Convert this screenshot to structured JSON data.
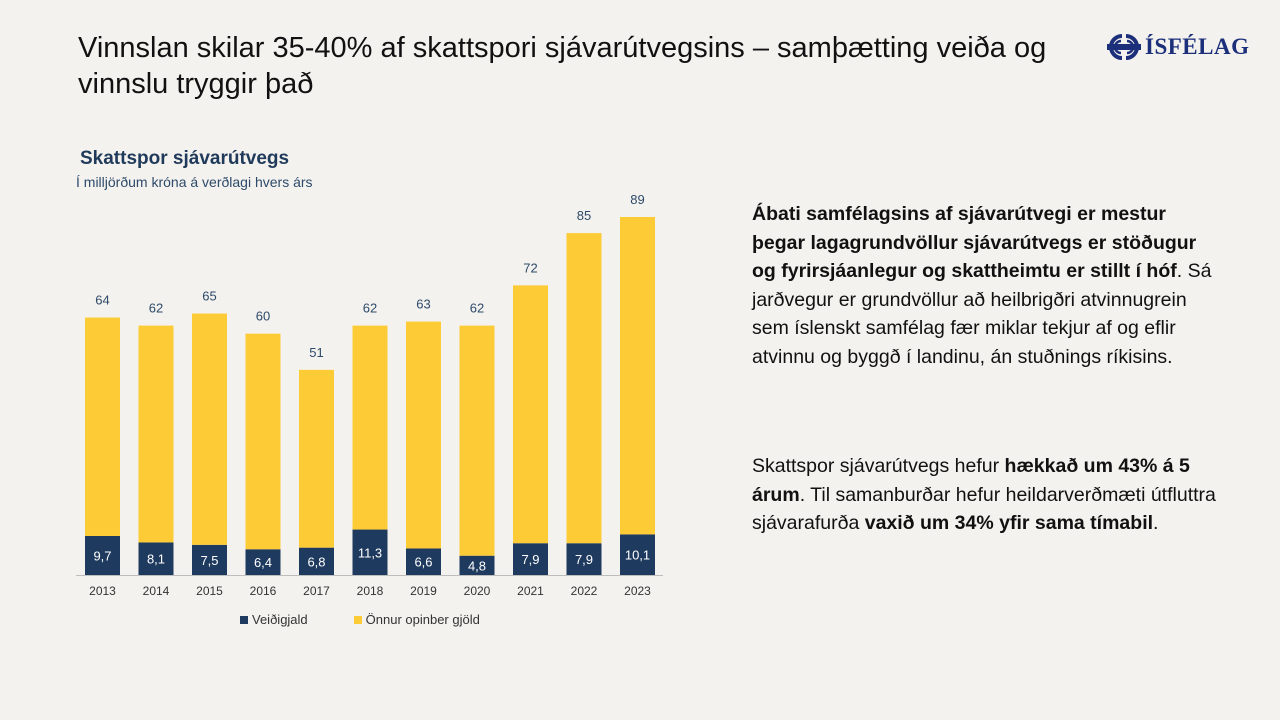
{
  "slide": {
    "title": "Vinnslan skilar 35-40% af skattspori sjávarútvegsins – samþætting veiða og vinnslu tryggir það",
    "logo_text": "ÍSFÉLAG",
    "logo_color": "#1b2f7a"
  },
  "chart_data": {
    "type": "bar",
    "stacked": true,
    "title": "Skattspor sjávarútvegs",
    "subtitle": "Í milljörðum króna á verðlagi hvers árs",
    "categories": [
      "2013",
      "2014",
      "2015",
      "2016",
      "2017",
      "2018",
      "2019",
      "2020",
      "2021",
      "2022",
      "2023"
    ],
    "series": [
      {
        "name": "Veiðigjald",
        "color": "#1f3a5f",
        "values": [
          9.7,
          8.1,
          7.5,
          6.4,
          6.8,
          11.3,
          6.6,
          4.8,
          7.9,
          7.9,
          10.1
        ],
        "labels": [
          "9,7",
          "8,1",
          "7,5",
          "6,4",
          "6,8",
          "11,3",
          "6,6",
          "4,8",
          "7,9",
          "7,9",
          "10,1"
        ]
      },
      {
        "name": "Önnur opinber gjöld",
        "color": "#fdcb35",
        "values": [
          54.3,
          53.9,
          57.5,
          53.6,
          44.2,
          50.7,
          56.4,
          57.2,
          64.1,
          77.1,
          78.9
        ]
      }
    ],
    "totals": [
      64,
      62,
      65,
      60,
      51,
      62,
      63,
      62,
      72,
      85,
      89
    ],
    "ylim": [
      0,
      89
    ],
    "legend_position": "bottom",
    "grid": false
  },
  "text": {
    "p1": [
      {
        "t": "Ábati samfélagsins af sjávarútvegi er mestur þegar lagagrundvöllur sjávarútvegs er stöðugur og fyrirsjáanlegur og skattheimtu er stillt í hóf",
        "b": true
      },
      {
        "t": ". Sá jarðvegur er grundvöllur að heilbrigðri atvinnugrein sem íslenskt samfélag fær miklar tekjur af og eflir atvinnu og byggð í landinu, án stuðnings ríkisins.",
        "b": false
      }
    ],
    "p2": [
      {
        "t": "Skattspor sjávarútvegs hefur ",
        "b": false
      },
      {
        "t": "hækkað um 43% á 5 árum",
        "b": true
      },
      {
        "t": ". Til samanburðar hefur heildarverðmæti útfluttra sjávarafurða ",
        "b": false
      },
      {
        "t": "vaxið um 34% yfir sama tímabil",
        "b": true
      },
      {
        "t": ".",
        "b": false
      }
    ]
  }
}
